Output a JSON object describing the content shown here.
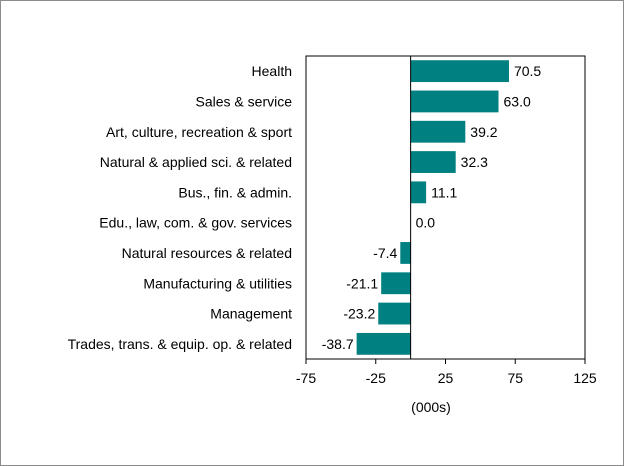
{
  "chart_data": {
    "type": "bar",
    "orientation": "horizontal",
    "categories": [
      "Health",
      "Sales & service",
      "Art, culture, recreation & sport",
      "Natural & applied sci. & related",
      "Bus., fin. & admin.",
      "Edu., law, com. & gov. services",
      "Natural resources & related",
      "Manufacturing & utilities",
      "Management",
      "Trades, trans. & equip. op. & related"
    ],
    "values": [
      70.5,
      63.0,
      39.2,
      32.3,
      11.1,
      0.0,
      -7.4,
      -21.1,
      -23.2,
      -38.7
    ],
    "value_labels": [
      "70.5",
      "63.0",
      "39.2",
      "32.3",
      "11.1",
      "0.0",
      "-7.4",
      "-21.1",
      "-23.2",
      "-38.7"
    ],
    "xlabel": "(000s)",
    "xlim": [
      -75,
      125
    ],
    "xticks": [
      -75,
      -25,
      25,
      75,
      125
    ],
    "xtick_labels": [
      "-75",
      "-25",
      "25",
      "75",
      "125"
    ],
    "bar_color": "#008080",
    "grid": false,
    "legend": "none"
  }
}
